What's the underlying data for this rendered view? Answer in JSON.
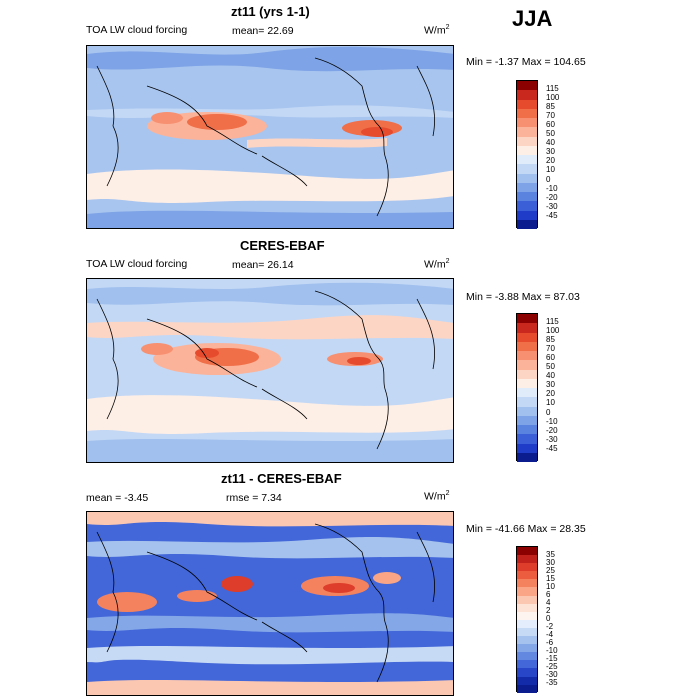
{
  "season": "JJA",
  "panels": [
    {
      "title": "zt11 (yrs 1-1)",
      "left_label": "TOA LW cloud forcing",
      "stat1": "mean=  22.69",
      "stat2": "",
      "units": "W/m",
      "units_sup": "2",
      "minmax": "Min =  -1.37 Max = 104.65",
      "levels": [
        "115",
        "100",
        "85",
        "70",
        "60",
        "50",
        "40",
        "30",
        "20",
        "10",
        "0",
        "-10",
        "-20",
        "-30",
        "-45"
      ],
      "colors": [
        "#8b0000",
        "#c8281e",
        "#e64b2d",
        "#f06e48",
        "#f79070",
        "#fbb39a",
        "#fdd5c4",
        "#fdeee6",
        "#e0ecfa",
        "#c3d8f5",
        "#a1c0ee",
        "#7ea3e6",
        "#5a83df",
        "#3a5fd6",
        "#1f3cc8",
        "#0b1c8f"
      ]
    },
    {
      "title": "CERES-EBAF",
      "left_label": "TOA LW cloud forcing",
      "stat1": "mean=  26.14",
      "stat2": "",
      "units": "W/m",
      "units_sup": "2",
      "minmax": "Min =  -3.88 Max =  87.03",
      "levels": [
        "115",
        "100",
        "85",
        "70",
        "60",
        "50",
        "40",
        "30",
        "20",
        "10",
        "0",
        "-10",
        "-20",
        "-30",
        "-45"
      ],
      "colors": [
        "#8b0000",
        "#c8281e",
        "#e64b2d",
        "#f06e48",
        "#f79070",
        "#fbb39a",
        "#fdd5c4",
        "#fdeee6",
        "#e0ecfa",
        "#c3d8f5",
        "#a1c0ee",
        "#7ea3e6",
        "#5a83df",
        "#3a5fd6",
        "#1f3cc8",
        "#0b1c8f"
      ]
    },
    {
      "title": "zt11 - CERES-EBAF",
      "left_label": "mean =  -3.45",
      "stat1": "rmse =   7.34",
      "stat2": "",
      "units": "W/m",
      "units_sup": "2",
      "minmax": "Min = -41.66 Max =  28.35",
      "levels": [
        "35",
        "30",
        "25",
        "15",
        "10",
        "6",
        "4",
        "2",
        "0",
        "-2",
        "-4",
        "-6",
        "-10",
        "-15",
        "-25",
        "-30",
        "-35"
      ],
      "colors": [
        "#8b0000",
        "#c0211a",
        "#dd3d2a",
        "#ec5c3f",
        "#f4825f",
        "#f9a586",
        "#fcc7b1",
        "#fde3d6",
        "#fef4ef",
        "#e4edfb",
        "#c6d9f5",
        "#a5c2ee",
        "#84a7e8",
        "#6388e0",
        "#4367d8",
        "#2747c8",
        "#132ba8",
        "#0b1c8f"
      ]
    }
  ]
}
